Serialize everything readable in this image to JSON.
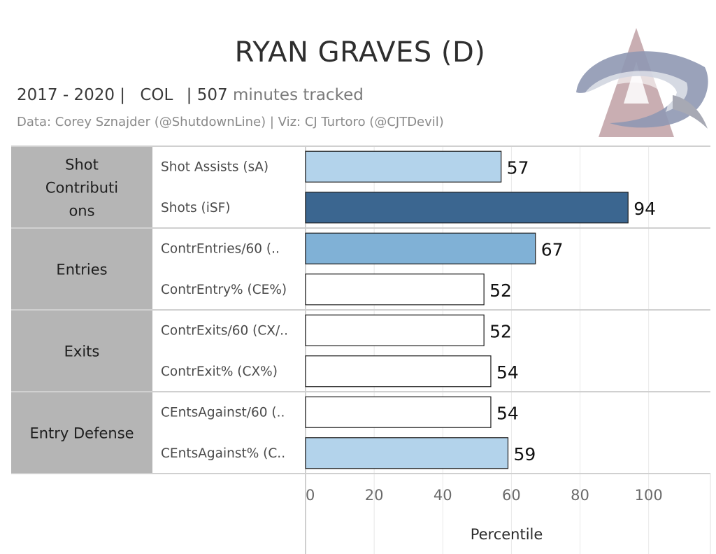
{
  "header": {
    "title": "RYAN GRAVES (D)",
    "years": "2017 - 2020 |",
    "team": "COL",
    "minutes_sep": "| 507",
    "minutes_label": "minutes tracked",
    "credits": "Data: Corey Sznajder (@ShutdownLine) | Viz: CJ Turtoro (@CJTDevil)"
  },
  "logo": {
    "name": "colorado-avalanche-logo",
    "colors": [
      "#8e96b0",
      "#c8a9ae"
    ]
  },
  "chart_data": {
    "type": "bar",
    "orientation": "horizontal",
    "xlabel": "Percentile",
    "xlim": [
      0,
      118
    ],
    "xticks": [
      0,
      20,
      40,
      60,
      80,
      100
    ],
    "grid": true,
    "groups": [
      {
        "label": "Shot Contributi ons",
        "metrics": [
          {
            "label": "Shot Assists (sA)",
            "value": 57,
            "fill": "#b3d3eb"
          },
          {
            "label": "Shots (iSF)",
            "value": 94,
            "fill": "#3b6690"
          }
        ]
      },
      {
        "label": "Entries",
        "metrics": [
          {
            "label": "ContrEntries/60 (..",
            "value": 67,
            "fill": "#80b1d6"
          },
          {
            "label": "ContrEntry% (CE%)",
            "value": 52,
            "fill": "#ffffff"
          }
        ]
      },
      {
        "label": "Exits",
        "metrics": [
          {
            "label": "ContrExits/60 (CX/..",
            "value": 52,
            "fill": "#ffffff"
          },
          {
            "label": "ContrExit% (CX%)",
            "value": 54,
            "fill": "#ffffff"
          }
        ]
      },
      {
        "label": "Entry Defense",
        "metrics": [
          {
            "label": "CEntsAgainst/60 (..",
            "value": 54,
            "fill": "#ffffff"
          },
          {
            "label": "CEntsAgainst% (C..",
            "value": 59,
            "fill": "#b3d3eb"
          }
        ]
      }
    ]
  }
}
